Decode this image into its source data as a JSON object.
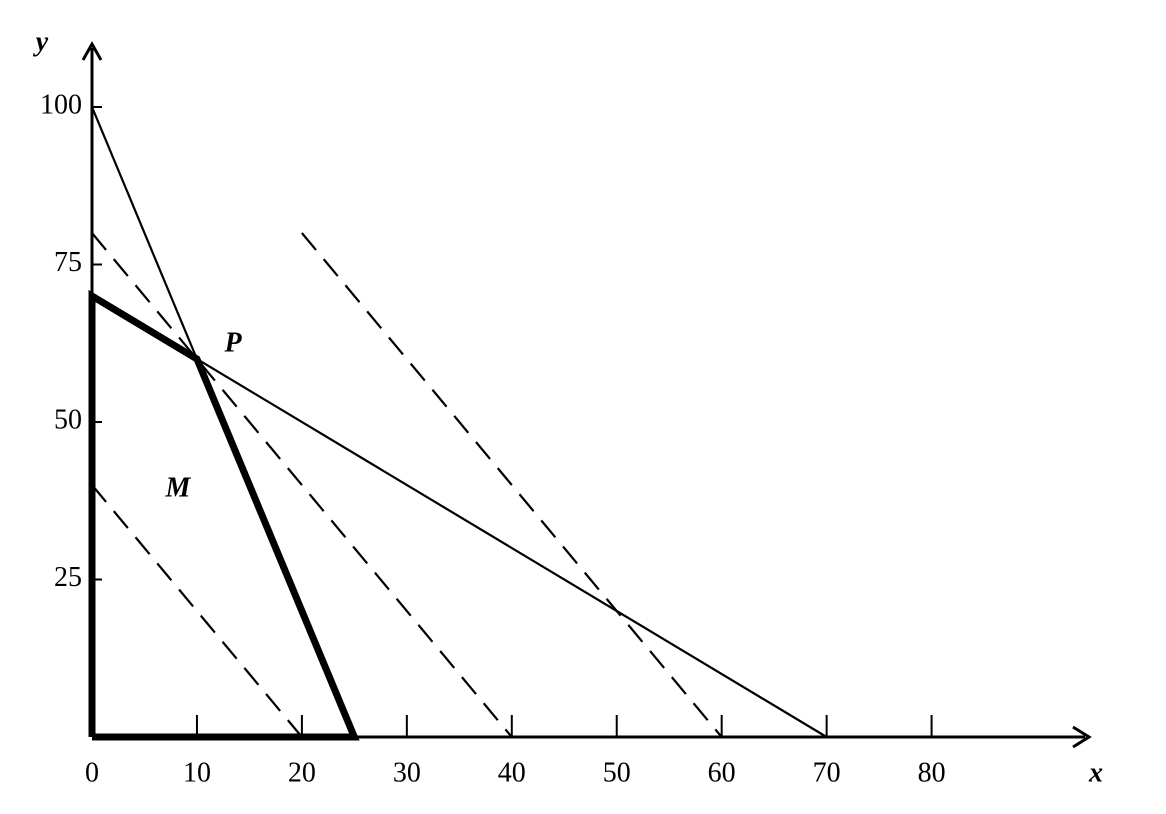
{
  "chart_data": {
    "type": "line",
    "xlabel": "x",
    "ylabel": "y",
    "xlim": [
      0,
      95
    ],
    "ylim": [
      0,
      110
    ],
    "xticks": [
      0,
      10,
      20,
      30,
      40,
      50,
      60,
      70,
      80
    ],
    "yticks": [
      25,
      50,
      75,
      100
    ],
    "series": [
      {
        "x": [
          0,
          25
        ],
        "values": [
          100,
          0
        ],
        "color": "#000",
        "style": "thin"
      },
      {
        "x": [
          0,
          70
        ],
        "values": [
          70,
          0
        ],
        "color": "#000",
        "style": "thin"
      },
      {
        "x": [
          0,
          20
        ],
        "values": [
          40,
          0
        ],
        "color": "#000",
        "style": "dashed"
      },
      {
        "x": [
          0,
          40
        ],
        "values": [
          80,
          0
        ],
        "color": "#000",
        "style": "dashed"
      },
      {
        "x": [
          20,
          60
        ],
        "values": [
          80,
          0
        ],
        "color": "#000",
        "style": "dashed"
      },
      {
        "x": [
          0,
          0,
          10,
          25,
          0
        ],
        "values": [
          0,
          70,
          60,
          0,
          0
        ],
        "color": "#000",
        "style": "thick"
      }
    ],
    "annotations": [
      "P",
      "M"
    ]
  }
}
